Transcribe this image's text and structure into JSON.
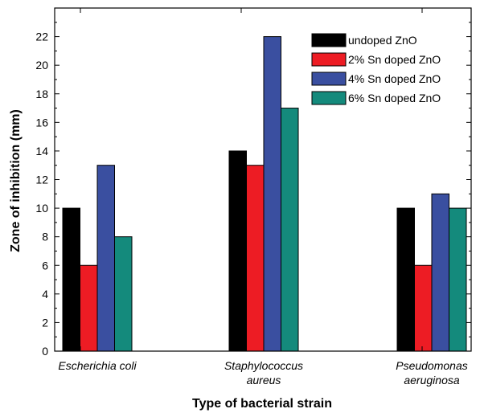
{
  "chart_data": {
    "type": "bar",
    "title": "",
    "xlabel": "Type of bacterial strain",
    "ylabel": "Zone of inhibition (mm)",
    "ylim": [
      0,
      24
    ],
    "yticks": [
      0,
      2,
      4,
      6,
      8,
      10,
      12,
      14,
      16,
      18,
      20,
      22
    ],
    "categories": [
      [
        "Escherichia coli"
      ],
      [
        "Staphylococcus",
        "aureus"
      ],
      [
        "Pseudomonas",
        "aeruginosa"
      ]
    ],
    "series": [
      {
        "name": "undoped ZnO",
        "color": "#000000",
        "values": [
          10,
          14,
          10
        ]
      },
      {
        "name": "2% Sn doped ZnO",
        "color": "#ed1c24",
        "values": [
          6,
          13,
          6
        ]
      },
      {
        "name": "4% Sn doped ZnO",
        "color": "#3a4fa0",
        "values": [
          13,
          22,
          11
        ]
      },
      {
        "name": "6% Sn doped ZnO",
        "color": "#148a7c",
        "values": [
          8,
          17,
          10
        ]
      }
    ],
    "legend_position": "top-right",
    "grid": false
  }
}
